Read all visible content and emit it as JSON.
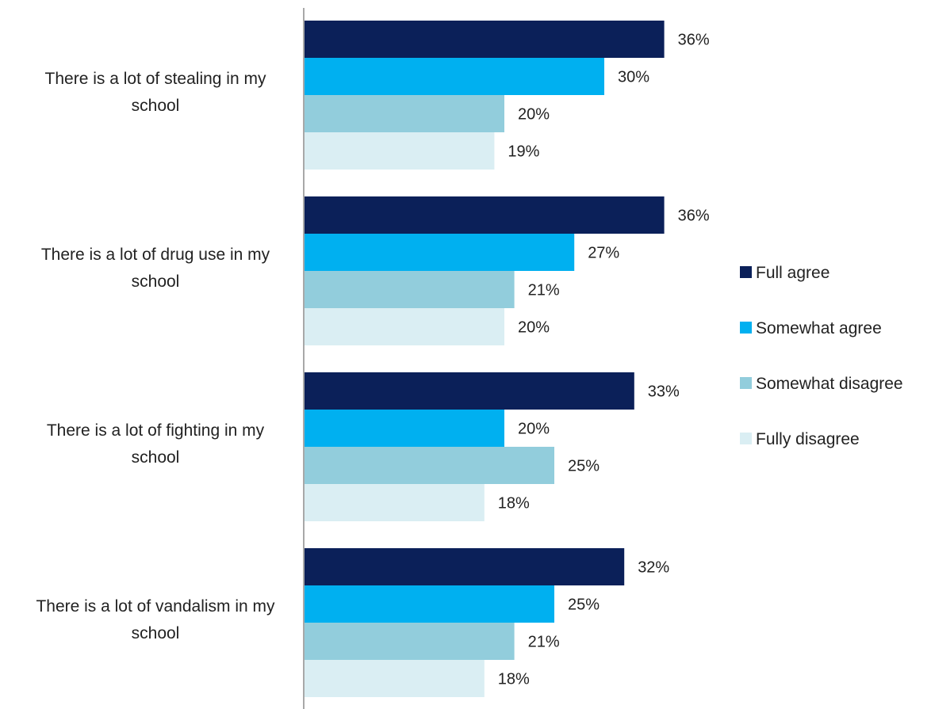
{
  "chart_data": {
    "type": "bar",
    "orientation": "horizontal",
    "title": "",
    "xlabel": "",
    "ylabel": "",
    "value_suffix": "%",
    "xlim": [
      0,
      40
    ],
    "grid": false,
    "legend_position": "right",
    "categories": [
      "There is a lot of stealing in my school",
      "There is a lot of drug use in my school",
      "There is a lot of fighting in my school",
      "There is a lot of vandalism in my school"
    ],
    "category_lines": [
      [
        "There is a lot of stealing in my",
        "school"
      ],
      [
        "There is a lot of drug use in my",
        "school"
      ],
      [
        "There is a lot of fighting in my",
        "school"
      ],
      [
        "There is a lot of vandalism in my",
        "school"
      ]
    ],
    "series": [
      {
        "name": "Full agree",
        "color": "#0b2059",
        "values": [
          36,
          36,
          33,
          32
        ]
      },
      {
        "name": "Somewhat agree",
        "color": "#00b0f0",
        "values": [
          30,
          27,
          20,
          25
        ]
      },
      {
        "name": "Somewhat disagree",
        "color": "#92cddc",
        "values": [
          20,
          21,
          25,
          21
        ]
      },
      {
        "name": "Fully disagree",
        "color": "#daeef3",
        "values": [
          19,
          20,
          18,
          18
        ]
      }
    ]
  }
}
